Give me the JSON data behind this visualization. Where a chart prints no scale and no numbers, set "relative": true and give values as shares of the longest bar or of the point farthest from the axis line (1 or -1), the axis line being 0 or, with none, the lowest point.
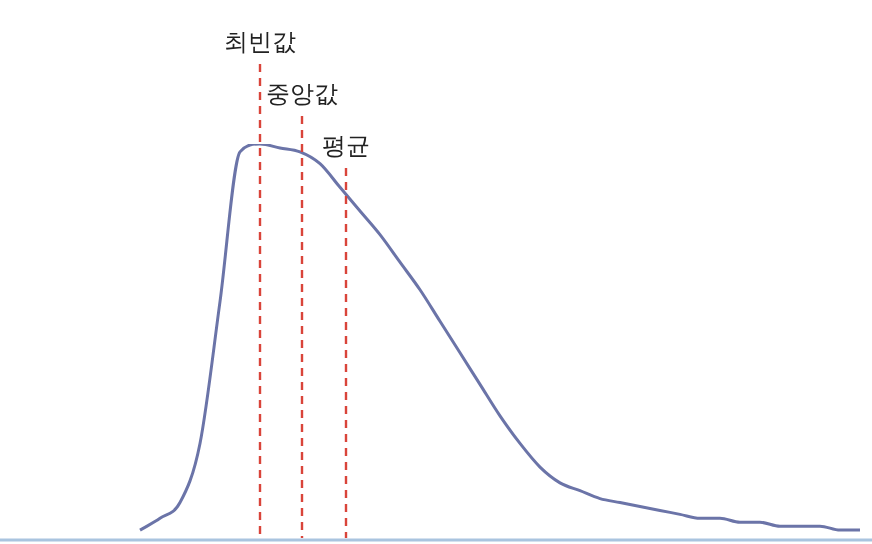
{
  "chart_data": {
    "type": "line",
    "relative": true,
    "categories": [
      null,
      null,
      null,
      null,
      null,
      null,
      null,
      null,
      null,
      null,
      null,
      null,
      null,
      null,
      null,
      null,
      null,
      null,
      null,
      null,
      null,
      null,
      null,
      null,
      null,
      null,
      null,
      null,
      null,
      null,
      null,
      null,
      null,
      null,
      null,
      null,
      null
    ],
    "series": [
      {
        "color": "#6b74a8",
        "values": [
          0.02,
          0.05,
          0.09,
          0.24,
          0.6,
          0.98,
          1,
          0.99,
          0.98,
          0.95,
          0.89,
          0.83,
          0.77,
          0.7,
          0.63,
          0.55,
          0.47,
          0.39,
          0.31,
          0.24,
          0.18,
          0.14,
          0.12,
          0.1,
          0.09,
          0.08,
          0.07,
          0.06,
          0.05,
          0.05,
          0.04,
          0.04,
          0.03,
          0.03,
          0.03,
          0.02,
          0.02
        ]
      }
    ],
    "annotations": [
      "최빈값",
      "중앙값",
      "평균"
    ],
    "marker": "none",
    "line_style": "solid"
  }
}
